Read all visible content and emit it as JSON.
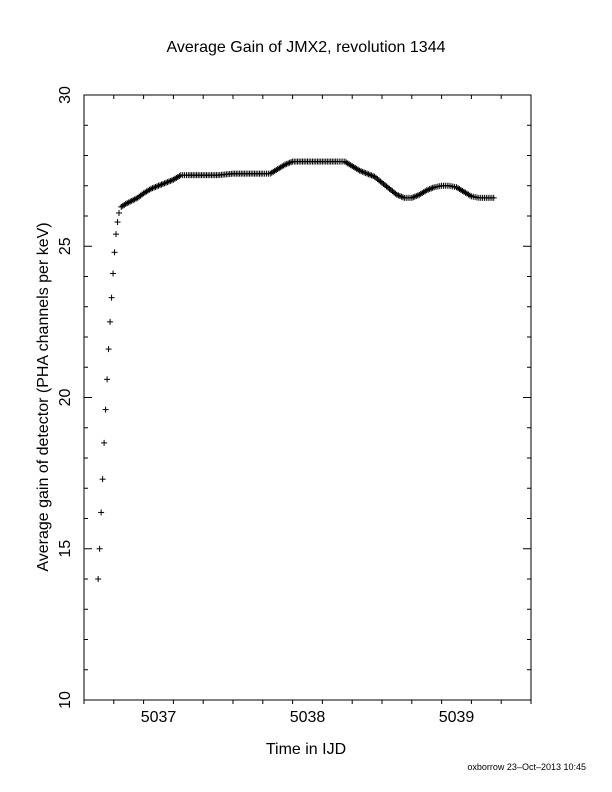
{
  "chart_data": {
    "type": "scatter",
    "title": "Average Gain of JMX2, revolution 1344",
    "xlabel": "Time in IJD",
    "ylabel": "Average gain of detector (PHA channels per keV)",
    "xlim": [
      5036.5,
      5039.5
    ],
    "ylim": [
      10,
      30
    ],
    "xticks": [
      5037,
      5038,
      5039
    ],
    "yticks": [
      10,
      15,
      20,
      25,
      30
    ],
    "xtick_labels": [
      "5037",
      "5038",
      "5039"
    ],
    "ytick_labels": [
      "10",
      "15",
      "20",
      "25",
      "30"
    ],
    "marker": "+",
    "marker_color": "#000000",
    "grid": false,
    "legend": "none",
    "x": [
      5036.595,
      5036.605,
      5036.615,
      5036.625,
      5036.635,
      5036.645,
      5036.655,
      5036.665,
      5036.675,
      5036.685,
      5036.695,
      5036.705,
      5036.715,
      5036.725,
      5036.735,
      5036.75,
      5036.78,
      5036.82,
      5036.86,
      5036.9,
      5036.95,
      5037.0,
      5037.05,
      5037.1,
      5037.15,
      5037.2,
      5037.3,
      5037.4,
      5037.5,
      5037.6,
      5037.7,
      5037.75,
      5037.8,
      5037.85,
      5037.9,
      5038.0,
      5038.1,
      5038.2,
      5038.25,
      5038.3,
      5038.35,
      5038.4,
      5038.45,
      5038.5,
      5038.55,
      5038.6,
      5038.65,
      5038.7,
      5038.75,
      5038.8,
      5038.85,
      5038.9,
      5038.95,
      5039.0,
      5039.05,
      5039.1,
      5039.15,
      5039.2,
      5039.25
    ],
    "y": [
      14.0,
      15.0,
      16.2,
      17.3,
      18.5,
      19.6,
      20.6,
      21.6,
      22.5,
      23.3,
      24.1,
      24.8,
      25.4,
      25.8,
      26.1,
      26.3,
      26.4,
      26.5,
      26.6,
      26.75,
      26.9,
      27.0,
      27.1,
      27.2,
      27.35,
      27.35,
      27.35,
      27.35,
      27.4,
      27.4,
      27.4,
      27.4,
      27.55,
      27.7,
      27.8,
      27.8,
      27.8,
      27.8,
      27.8,
      27.65,
      27.5,
      27.4,
      27.3,
      27.1,
      26.9,
      26.7,
      26.6,
      26.6,
      26.7,
      26.85,
      26.95,
      27.0,
      27.0,
      26.95,
      26.8,
      26.65,
      26.6,
      26.6,
      26.6
    ]
  },
  "footer": {
    "text": "oxborrow 23–Oct–2013 10:45"
  }
}
